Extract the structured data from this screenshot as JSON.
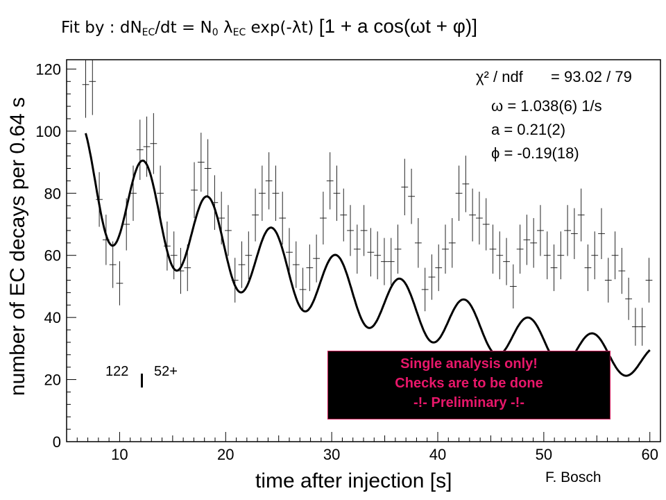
{
  "title": {
    "prefix": "Fit by : dN",
    "sub_ec1": "EC",
    "mid1": "/dt = N",
    "sub_0": "0",
    "mid2": " λ",
    "sub_ec2": "EC",
    "mid3": " exp(-λt) ",
    "bracket": "[1 + a cos(ωt + φ)]"
  },
  "stats": {
    "chi2_label": "χ² / ndf",
    "chi2_value": "=  93.02 / 79",
    "omega": "= 1.038(6) 1/s",
    "a_line": "a = 0.21(2)",
    "phi": "= -0.19(18)"
  },
  "isotope": {
    "mass": "122",
    "charge": "52+"
  },
  "warning": {
    "line1": "Single analysis only!",
    "line2": "Checks are to be done",
    "line3": "-!- Preliminary -!-"
  },
  "credit": "F. Bosch",
  "chart_data": {
    "type": "scatter",
    "xlabel": "time after injection [s]",
    "ylabel": "number of EC decays per 0.64 s",
    "xlim": [
      5,
      61
    ],
    "ylim": [
      0,
      123
    ],
    "xticks": [
      10,
      20,
      30,
      40,
      50,
      60
    ],
    "yticks": [
      0,
      20,
      40,
      60,
      80,
      100,
      120
    ],
    "bin_width": 0.64,
    "series": [
      {
        "kind": "data-with-errors",
        "x": [
          6.8,
          7.44,
          8.08,
          8.72,
          9.36,
          10.0,
          10.64,
          11.28,
          11.92,
          12.56,
          13.2,
          13.84,
          14.48,
          15.12,
          15.76,
          16.4,
          17.04,
          17.68,
          18.32,
          18.96,
          19.6,
          20.24,
          20.88,
          21.52,
          22.16,
          22.8,
          23.44,
          24.08,
          24.72,
          25.36,
          26.0,
          26.64,
          27.28,
          27.92,
          28.56,
          29.2,
          29.84,
          30.48,
          31.12,
          31.76,
          32.4,
          33.04,
          33.68,
          34.32,
          34.96,
          35.6,
          36.24,
          36.88,
          37.52,
          38.16,
          38.8,
          39.44,
          40.08,
          40.72,
          41.36,
          42.0,
          42.64,
          43.28,
          43.92,
          44.56,
          45.2,
          45.84,
          46.48,
          47.12,
          47.76,
          48.4,
          49.04,
          49.68,
          50.32,
          50.96,
          51.6,
          52.24,
          52.88,
          53.52,
          54.16,
          54.8,
          55.44,
          56.08,
          56.72,
          57.36,
          58.0,
          58.64,
          59.28,
          59.92
        ],
        "y": [
          115,
          116,
          78,
          65,
          57,
          51,
          70,
          80,
          94,
          95,
          96,
          80,
          63,
          60,
          55,
          56,
          81,
          90,
          88,
          77,
          72,
          68,
          52,
          57,
          60,
          73,
          80,
          84,
          80,
          72,
          61,
          57,
          49,
          56,
          59,
          72,
          84,
          80,
          73,
          68,
          62,
          68,
          61,
          60,
          58,
          58,
          62,
          82,
          79,
          64,
          49,
          53,
          56,
          62,
          64,
          80,
          83,
          73,
          72,
          70,
          62,
          60,
          58,
          50,
          62,
          65,
          64,
          68,
          60,
          56,
          60,
          68,
          67,
          73,
          56,
          60,
          67,
          52,
          60,
          55,
          46,
          37,
          37,
          52
        ],
        "err": [
          10.7,
          10.8,
          8.8,
          8.1,
          7.5,
          7.1,
          8.4,
          8.9,
          9.7,
          9.7,
          9.8,
          8.9,
          7.9,
          7.7,
          7.4,
          7.5,
          9.0,
          9.5,
          9.4,
          8.8,
          8.5,
          8.2,
          7.2,
          7.5,
          7.7,
          8.5,
          8.9,
          9.2,
          8.9,
          8.5,
          7.8,
          7.5,
          7.0,
          7.5,
          7.7,
          8.5,
          9.2,
          8.9,
          8.5,
          8.2,
          7.9,
          8.2,
          7.8,
          7.7,
          7.6,
          7.6,
          7.9,
          9.1,
          8.9,
          8.0,
          7.0,
          7.3,
          7.5,
          7.9,
          8.0,
          8.9,
          9.1,
          8.5,
          8.5,
          8.4,
          7.9,
          7.7,
          7.6,
          7.1,
          7.9,
          8.1,
          8.0,
          8.2,
          7.7,
          7.5,
          7.7,
          8.2,
          8.2,
          8.5,
          7.5,
          7.7,
          8.2,
          7.2,
          7.7,
          7.4,
          6.8,
          6.1,
          6.1,
          7.2
        ]
      },
      {
        "kind": "fit",
        "model": "N0 * exp(-lambda t) * (1 + a cos(omega t + phi))",
        "params": {
          "N0": 98.5,
          "lambda": 0.0225,
          "a": 0.21,
          "omega": 1.038,
          "phi": -0.19
        },
        "x_range": [
          6.8,
          60
        ]
      }
    ]
  }
}
